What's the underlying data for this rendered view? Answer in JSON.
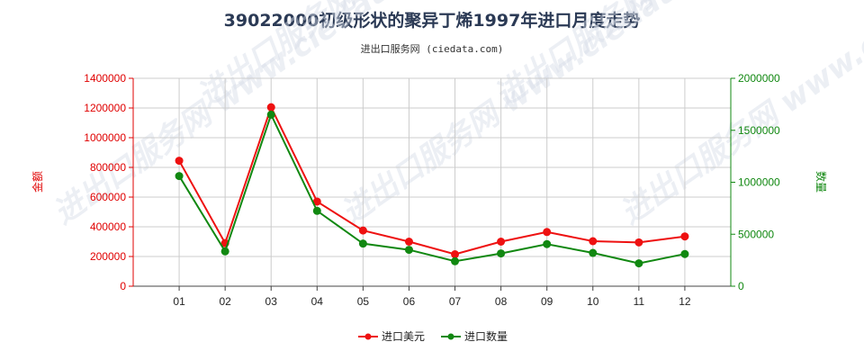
{
  "title": "39022000初级形状的聚异丁烯1997年进口月度走势",
  "subtitle": "进出口服务网 (ciedata.com)",
  "watermark": "进出口服务网 www.ciedata.com",
  "chart_data": {
    "type": "line",
    "categories": [
      "01",
      "02",
      "03",
      "04",
      "05",
      "06",
      "07",
      "08",
      "09",
      "10",
      "11",
      "12"
    ],
    "series": [
      {
        "name": "进口美元",
        "axis": "left",
        "color": "#ee1111",
        "values": [
          845000,
          290000,
          1205000,
          570000,
          375000,
          300000,
          215000,
          300000,
          365000,
          303000,
          295000,
          335000
        ]
      },
      {
        "name": "进口数量",
        "axis": "right",
        "color": "#118811",
        "values": [
          1060000,
          335000,
          1650000,
          725000,
          410000,
          350000,
          240000,
          315000,
          405000,
          320000,
          220000,
          310000
        ]
      }
    ],
    "y_left": {
      "label": "金额",
      "min": 0,
      "max": 1400000,
      "ticks": [
        "0",
        "200000",
        "400000",
        "600000",
        "800000",
        "1000000",
        "1200000",
        "1400000"
      ]
    },
    "y_right": {
      "label": "数量",
      "min": 0,
      "max": 2000000,
      "ticks": [
        "0",
        "500000",
        "1000000",
        "1500000",
        "2000000"
      ]
    },
    "grid": true,
    "legend_position": "bottom"
  }
}
